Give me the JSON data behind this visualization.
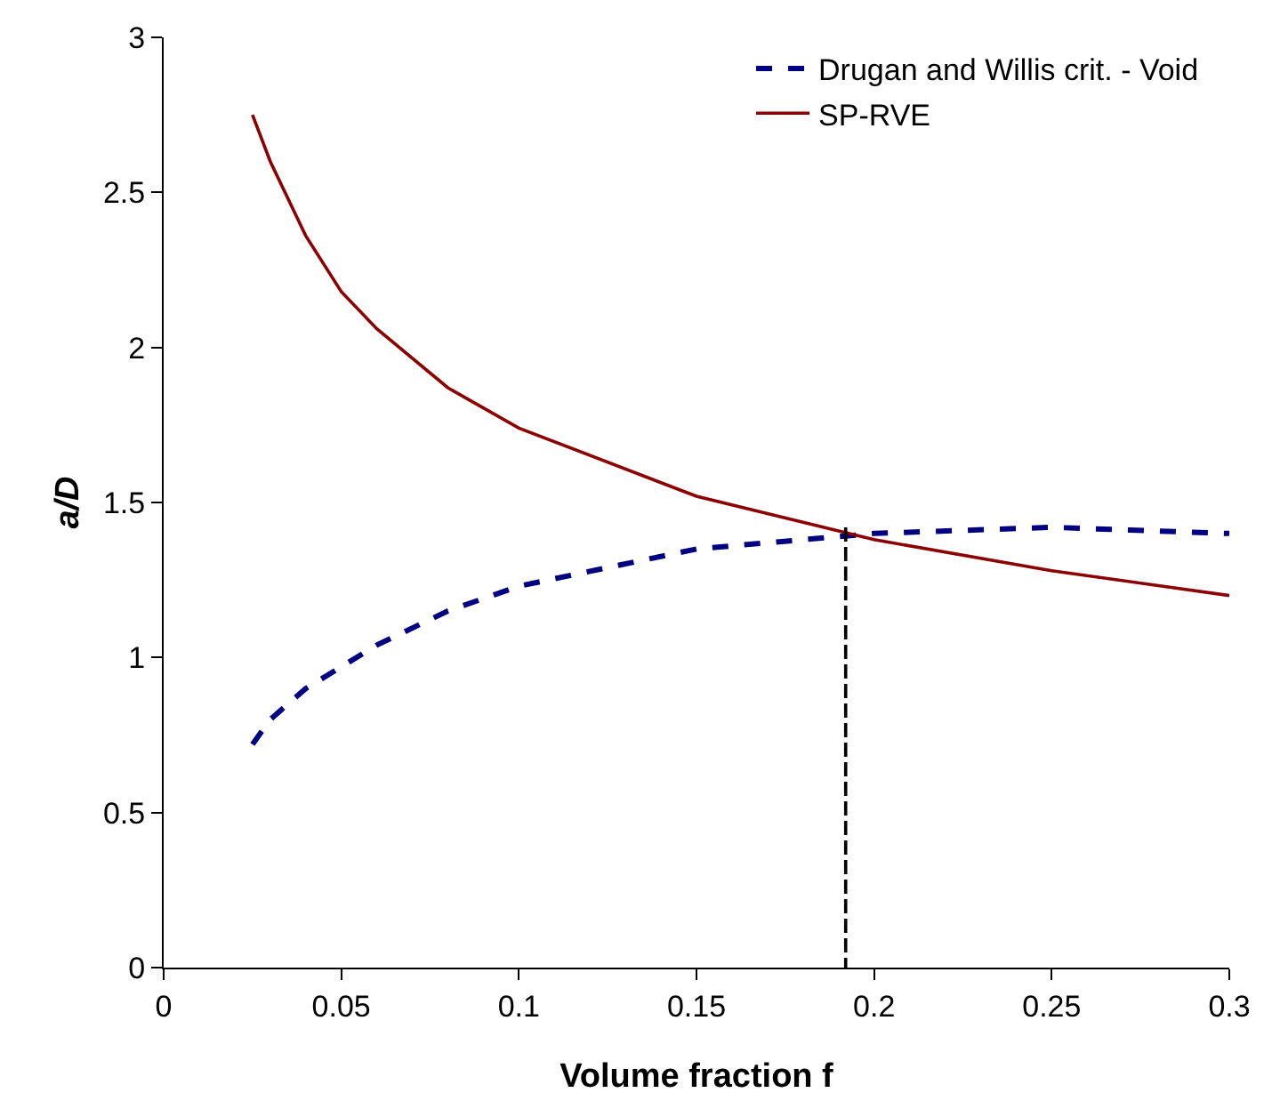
{
  "chart_data": {
    "type": "line",
    "xlabel": "Volume fraction f",
    "ylabel": "a/D",
    "xlim": [
      0,
      0.3
    ],
    "ylim": [
      0,
      3
    ],
    "xticks": [
      0,
      0.05,
      0.1,
      0.15,
      0.2,
      0.25,
      0.3
    ],
    "yticks": [
      0,
      0.5,
      1,
      1.5,
      2,
      2.5,
      3
    ],
    "grid": false,
    "legend": "top right",
    "marker": "none",
    "series": [
      {
        "name": "Drugan and Willis crit. - Void",
        "color": "#000080",
        "line_style": "dashed",
        "x": [
          0.025,
          0.03,
          0.04,
          0.05,
          0.06,
          0.08,
          0.1,
          0.15,
          0.2,
          0.25,
          0.3
        ],
        "values": [
          0.72,
          0.8,
          0.9,
          0.97,
          1.04,
          1.15,
          1.23,
          1.35,
          1.4,
          1.42,
          1.4
        ]
      },
      {
        "name": "SP-RVE",
        "color": "#8b0000",
        "line_style": "solid",
        "x": [
          0.025,
          0.03,
          0.04,
          0.05,
          0.06,
          0.08,
          0.1,
          0.15,
          0.2,
          0.25,
          0.3
        ],
        "values": [
          2.75,
          2.6,
          2.36,
          2.18,
          2.06,
          1.87,
          1.74,
          1.52,
          1.38,
          1.28,
          1.2
        ]
      },
      {
        "color": "#000000",
        "line_style": "dashed",
        "x": [
          0.192,
          0.192
        ],
        "values": [
          1.42,
          0
        ]
      }
    ]
  }
}
